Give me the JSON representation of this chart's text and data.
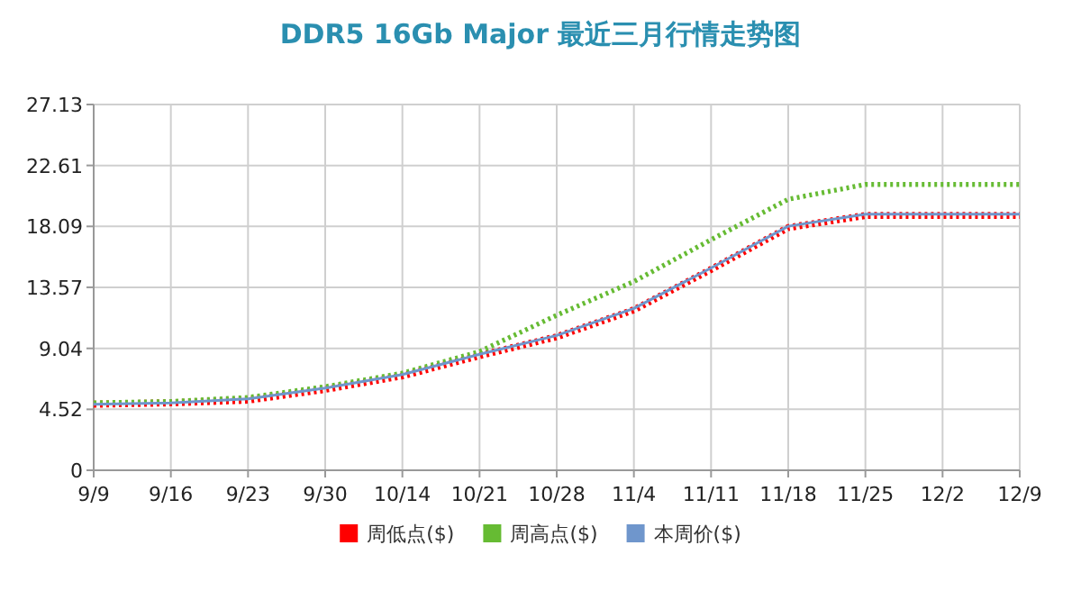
{
  "chart_data": {
    "type": "line",
    "title": "DDR5 16Gb Major 最近三月行情走势图",
    "categories": [
      "9/9",
      "9/16",
      "9/23",
      "9/30",
      "10/14",
      "10/21",
      "10/28",
      "11/4",
      "11/11",
      "11/18",
      "11/25",
      "12/2",
      "12/9"
    ],
    "series": [
      {
        "name": "周低点($)",
        "color": "#ff0000",
        "line_style": "dotted",
        "values": [
          4.9,
          5.0,
          5.2,
          6.0,
          7.0,
          8.5,
          9.9,
          11.9,
          14.9,
          18.0,
          18.9,
          18.9,
          18.9
        ]
      },
      {
        "name": "周高点($)",
        "color": "#66bb33",
        "line_style": "dotted",
        "values": [
          5.0,
          5.1,
          5.4,
          6.2,
          7.2,
          8.8,
          11.5,
          14.0,
          17.1,
          20.1,
          21.2,
          21.2,
          21.2
        ]
      },
      {
        "name": "本周价($)",
        "color": "#6f96cc",
        "line_style": "solid",
        "values": [
          4.9,
          5.0,
          5.3,
          6.1,
          7.1,
          8.6,
          10.0,
          12.0,
          15.0,
          18.1,
          19.0,
          19.0,
          19.0
        ]
      }
    ],
    "ylim": [
      0,
      27.13
    ],
    "yticks": [
      0,
      4.52,
      9.04,
      13.57,
      18.09,
      22.61,
      27.13
    ],
    "grid": true,
    "legend": "bottom",
    "marker": "none"
  }
}
